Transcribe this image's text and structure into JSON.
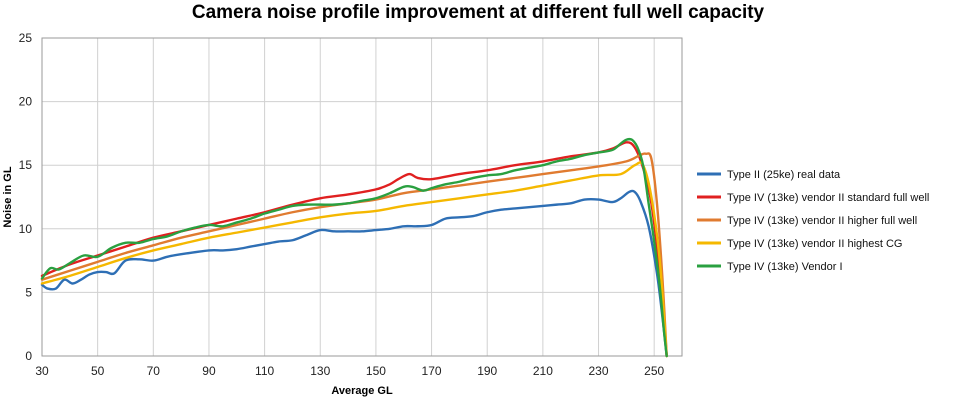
{
  "chart_data": {
    "type": "line",
    "title": "Camera noise profile improvement at different full well capacity",
    "xlabel": "Average GL",
    "ylabel": "Noise in GL",
    "xlim": [
      30,
      260
    ],
    "ylim": [
      0,
      25
    ],
    "xticks": [
      30,
      50,
      70,
      90,
      110,
      130,
      150,
      170,
      190,
      210,
      230,
      250
    ],
    "yticks": [
      0,
      5,
      10,
      15,
      20,
      25
    ],
    "grid": true,
    "legend_position": "right",
    "series": [
      {
        "name": "Type II (25ke) real data",
        "color": "#2e6fb5",
        "x": [
          30,
          32,
          35,
          38,
          41,
          44,
          47,
          50,
          53,
          56,
          60,
          65,
          70,
          75,
          80,
          90,
          95,
          100,
          105,
          110,
          115,
          120,
          125,
          130,
          135,
          140,
          145,
          150,
          155,
          160,
          165,
          170,
          175,
          180,
          185,
          190,
          195,
          200,
          205,
          210,
          215,
          220,
          225,
          230,
          235,
          238,
          241,
          243,
          245,
          248,
          251,
          253,
          254.5
        ],
        "y": [
          5.6,
          5.3,
          5.3,
          6.0,
          5.7,
          6.0,
          6.4,
          6.6,
          6.6,
          6.5,
          7.5,
          7.6,
          7.5,
          7.8,
          8.0,
          8.3,
          8.3,
          8.4,
          8.6,
          8.8,
          9.0,
          9.1,
          9.5,
          9.9,
          9.8,
          9.8,
          9.8,
          9.9,
          10.0,
          10.2,
          10.2,
          10.3,
          10.8,
          10.9,
          11.0,
          11.3,
          11.5,
          11.6,
          11.7,
          11.8,
          11.9,
          12.0,
          12.3,
          12.3,
          12.1,
          12.4,
          12.9,
          12.9,
          12.2,
          10.2,
          6.5,
          3.0,
          0.0
        ]
      },
      {
        "name": "Type IV (13ke) vendor II standard full well",
        "color": "#e02020",
        "x": [
          30,
          40,
          50,
          60,
          70,
          80,
          90,
          100,
          110,
          120,
          130,
          140,
          150,
          155,
          158,
          162,
          165,
          170,
          180,
          190,
          200,
          210,
          220,
          230,
          235,
          240,
          243,
          246,
          249,
          252,
          254.5
        ],
        "y": [
          6.3,
          7.2,
          7.9,
          8.6,
          9.3,
          9.8,
          10.3,
          10.8,
          11.3,
          11.9,
          12.4,
          12.7,
          13.1,
          13.5,
          13.9,
          14.3,
          14.0,
          13.9,
          14.3,
          14.6,
          15.0,
          15.3,
          15.7,
          16.0,
          16.3,
          16.8,
          16.4,
          14.8,
          12.0,
          6.5,
          0.0
        ]
      },
      {
        "name": "Type IV (13ke) vendor II higher full well",
        "color": "#e07b30",
        "x": [
          30,
          40,
          50,
          60,
          70,
          80,
          90,
          100,
          110,
          120,
          130,
          140,
          150,
          160,
          170,
          180,
          190,
          200,
          210,
          220,
          230,
          240,
          245,
          247,
          249,
          251,
          253,
          254.5
        ],
        "y": [
          6.0,
          6.7,
          7.4,
          8.1,
          8.7,
          9.3,
          9.8,
          10.3,
          10.8,
          11.3,
          11.7,
          12.0,
          12.3,
          12.8,
          13.1,
          13.4,
          13.7,
          14.0,
          14.3,
          14.6,
          14.9,
          15.3,
          15.8,
          15.9,
          15.5,
          12.0,
          6.0,
          0.0
        ]
      },
      {
        "name": "Type IV (13ke) vendor II highest CG",
        "color": "#f5b800",
        "x": [
          30,
          40,
          50,
          60,
          70,
          80,
          90,
          100,
          110,
          120,
          130,
          140,
          150,
          160,
          170,
          180,
          190,
          200,
          210,
          220,
          230,
          238,
          243,
          246,
          249,
          252,
          254.5
        ],
        "y": [
          5.7,
          6.3,
          7.0,
          7.7,
          8.3,
          8.8,
          9.3,
          9.7,
          10.1,
          10.5,
          10.9,
          11.2,
          11.4,
          11.8,
          12.1,
          12.4,
          12.7,
          13.0,
          13.4,
          13.8,
          14.2,
          14.3,
          15.0,
          15.0,
          12.5,
          7.5,
          0.0
        ]
      },
      {
        "name": "Type IV (13ke) Vendor I",
        "color": "#2aa040",
        "x": [
          30,
          33,
          36,
          40,
          45,
          50,
          55,
          60,
          65,
          70,
          75,
          80,
          85,
          90,
          95,
          100,
          105,
          110,
          115,
          120,
          125,
          130,
          135,
          140,
          145,
          150,
          155,
          160,
          163,
          167,
          170,
          175,
          180,
          185,
          190,
          195,
          200,
          205,
          210,
          215,
          220,
          225,
          230,
          235,
          238,
          240,
          242,
          244,
          246,
          248,
          250,
          252,
          253.5,
          254.5
        ],
        "y": [
          6.1,
          6.9,
          6.8,
          7.3,
          7.9,
          7.8,
          8.5,
          8.9,
          8.9,
          9.2,
          9.4,
          9.8,
          10.1,
          10.3,
          10.2,
          10.5,
          10.8,
          11.2,
          11.5,
          11.8,
          11.9,
          11.9,
          11.9,
          12.0,
          12.2,
          12.4,
          12.8,
          13.3,
          13.3,
          13.0,
          13.2,
          13.5,
          13.7,
          14.0,
          14.2,
          14.3,
          14.6,
          14.8,
          15.0,
          15.3,
          15.5,
          15.8,
          16.0,
          16.2,
          16.7,
          17.0,
          17.0,
          16.4,
          15.0,
          12.0,
          9.0,
          5.5,
          2.0,
          0.0
        ]
      }
    ]
  }
}
